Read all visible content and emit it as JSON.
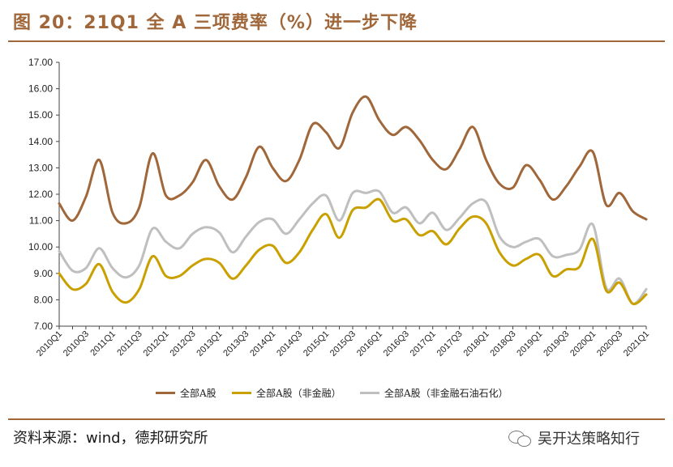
{
  "header": {
    "title": "图 20：21Q1 全 A 三项费率（%）进一步下降"
  },
  "footer": {
    "source": "资料来源：wind，德邦研究所",
    "watermark": "吴开达策略知行"
  },
  "colors": {
    "accent": "#a0673a",
    "series_all": "#a0673a",
    "series_nonfin": "#c9a000",
    "series_nonfin_ex_petro": "#bfbfbf"
  },
  "chart_data": {
    "type": "line",
    "title": "21Q1 全 A 三项费率（%）进一步下降",
    "xlabel": "",
    "ylabel": "",
    "ylim": [
      7.0,
      17.0
    ],
    "yticks": [
      "7.00",
      "8.00",
      "9.00",
      "10.00",
      "11.00",
      "12.00",
      "13.00",
      "14.00",
      "15.00",
      "16.00",
      "17.00"
    ],
    "x": [
      "2010Q1",
      "2010Q2",
      "2010Q3",
      "2010Q4",
      "2011Q1",
      "2011Q2",
      "2011Q3",
      "2011Q4",
      "2012Q1",
      "2012Q2",
      "2012Q3",
      "2012Q4",
      "2013Q1",
      "2013Q2",
      "2013Q3",
      "2013Q4",
      "2014Q1",
      "2014Q2",
      "2014Q3",
      "2014Q4",
      "2015Q1",
      "2015Q2",
      "2015Q3",
      "2015Q4",
      "2016Q1",
      "2016Q2",
      "2016Q3",
      "2016Q4",
      "2017Q1",
      "2017Q2",
      "2017Q3",
      "2017Q4",
      "2018Q1",
      "2018Q2",
      "2018Q3",
      "2018Q4",
      "2019Q1",
      "2019Q2",
      "2019Q3",
      "2019Q4",
      "2020Q1",
      "2020Q2",
      "2020Q3",
      "2020Q4",
      "2021Q1"
    ],
    "xtick_labels": [
      "2010Q1",
      "2010Q3",
      "2011Q1",
      "2011Q3",
      "2012Q1",
      "2012Q3",
      "2013Q1",
      "2013Q3",
      "2014Q1",
      "2014Q3",
      "2015Q1",
      "2015Q3",
      "2016Q1",
      "2016Q3",
      "2017Q1",
      "2017Q3",
      "2018Q1",
      "2018Q3",
      "2019Q1",
      "2019Q3",
      "2020Q1",
      "2020Q3",
      "2021Q1"
    ],
    "series": [
      {
        "name": "全部A股",
        "color": "#a0673a",
        "values": [
          11.65,
          11.0,
          11.9,
          13.3,
          11.3,
          10.9,
          11.5,
          13.55,
          11.95,
          11.95,
          12.45,
          13.3,
          12.3,
          11.8,
          12.65,
          13.8,
          13.0,
          12.5,
          13.3,
          14.65,
          14.35,
          13.75,
          15.1,
          15.7,
          14.8,
          14.25,
          14.55,
          14.05,
          13.3,
          12.95,
          13.7,
          14.55,
          13.3,
          12.4,
          12.25,
          13.1,
          12.55,
          11.8,
          12.3,
          13.05,
          13.6,
          11.6,
          12.05,
          11.35,
          11.05
        ]
      },
      {
        "name": "全部A股（非金融）",
        "color": "#c9a000",
        "values": [
          9.0,
          8.4,
          8.6,
          9.35,
          8.3,
          7.9,
          8.4,
          9.65,
          8.9,
          8.9,
          9.3,
          9.55,
          9.4,
          8.8,
          9.3,
          9.9,
          10.05,
          9.4,
          9.8,
          10.65,
          11.25,
          10.35,
          11.4,
          11.5,
          11.8,
          11.0,
          11.05,
          10.45,
          10.6,
          10.1,
          10.7,
          11.15,
          10.9,
          9.8,
          9.3,
          9.55,
          9.7,
          8.9,
          9.15,
          9.25,
          10.3,
          8.35,
          8.65,
          7.85,
          8.2
        ]
      },
      {
        "name": "全部A股（非金融石油石化）",
        "color": "#bfbfbf",
        "values": [
          9.85,
          9.1,
          9.2,
          9.95,
          9.2,
          8.85,
          9.3,
          10.7,
          10.2,
          9.95,
          10.5,
          10.75,
          10.55,
          9.8,
          10.4,
          10.95,
          11.05,
          10.5,
          11.05,
          11.65,
          11.95,
          11.0,
          12.05,
          12.05,
          12.1,
          11.3,
          11.5,
          10.9,
          11.3,
          10.65,
          11.1,
          11.65,
          11.7,
          10.4,
          10.0,
          10.2,
          10.3,
          9.65,
          9.7,
          9.9,
          10.85,
          8.45,
          8.8,
          7.85,
          8.4
        ]
      }
    ],
    "legend_position": "bottom",
    "grid": false
  }
}
